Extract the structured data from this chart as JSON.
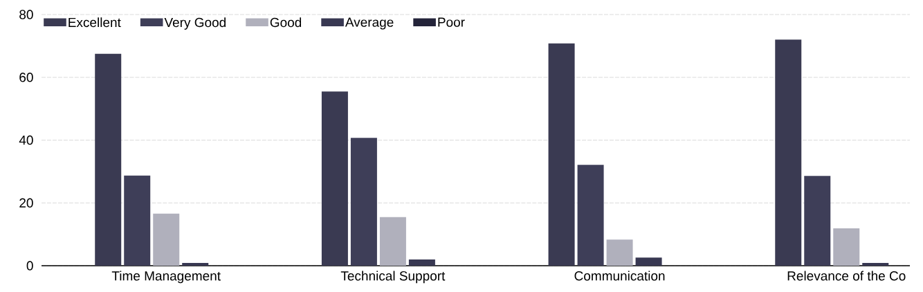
{
  "chart_data": {
    "type": "bar",
    "categories": [
      "Time Management",
      "Technical Support",
      "Communication",
      "Relevance of the Co"
    ],
    "series": [
      {
        "name": "Excellent",
        "color": "#3a3a52",
        "values": [
          67.5,
          55.5,
          70.8,
          72
        ]
      },
      {
        "name": "Very Good",
        "color": "#3e3e58",
        "values": [
          28.7,
          40.7,
          32.1,
          28.6
        ]
      },
      {
        "name": "Good",
        "color": "#b0b0bc",
        "values": [
          16.6,
          15.5,
          8.3,
          11.9
        ]
      },
      {
        "name": "Average",
        "color": "#383852",
        "values": [
          0.9,
          2,
          2.6,
          0.9
        ]
      },
      {
        "name": "Poor",
        "color": "#24243a",
        "values": [
          0,
          0,
          0,
          0
        ]
      }
    ],
    "ylim": [
      0,
      80
    ],
    "yticks": [
      0,
      20,
      40,
      60,
      80
    ],
    "grid": "y",
    "legend": "top left"
  }
}
